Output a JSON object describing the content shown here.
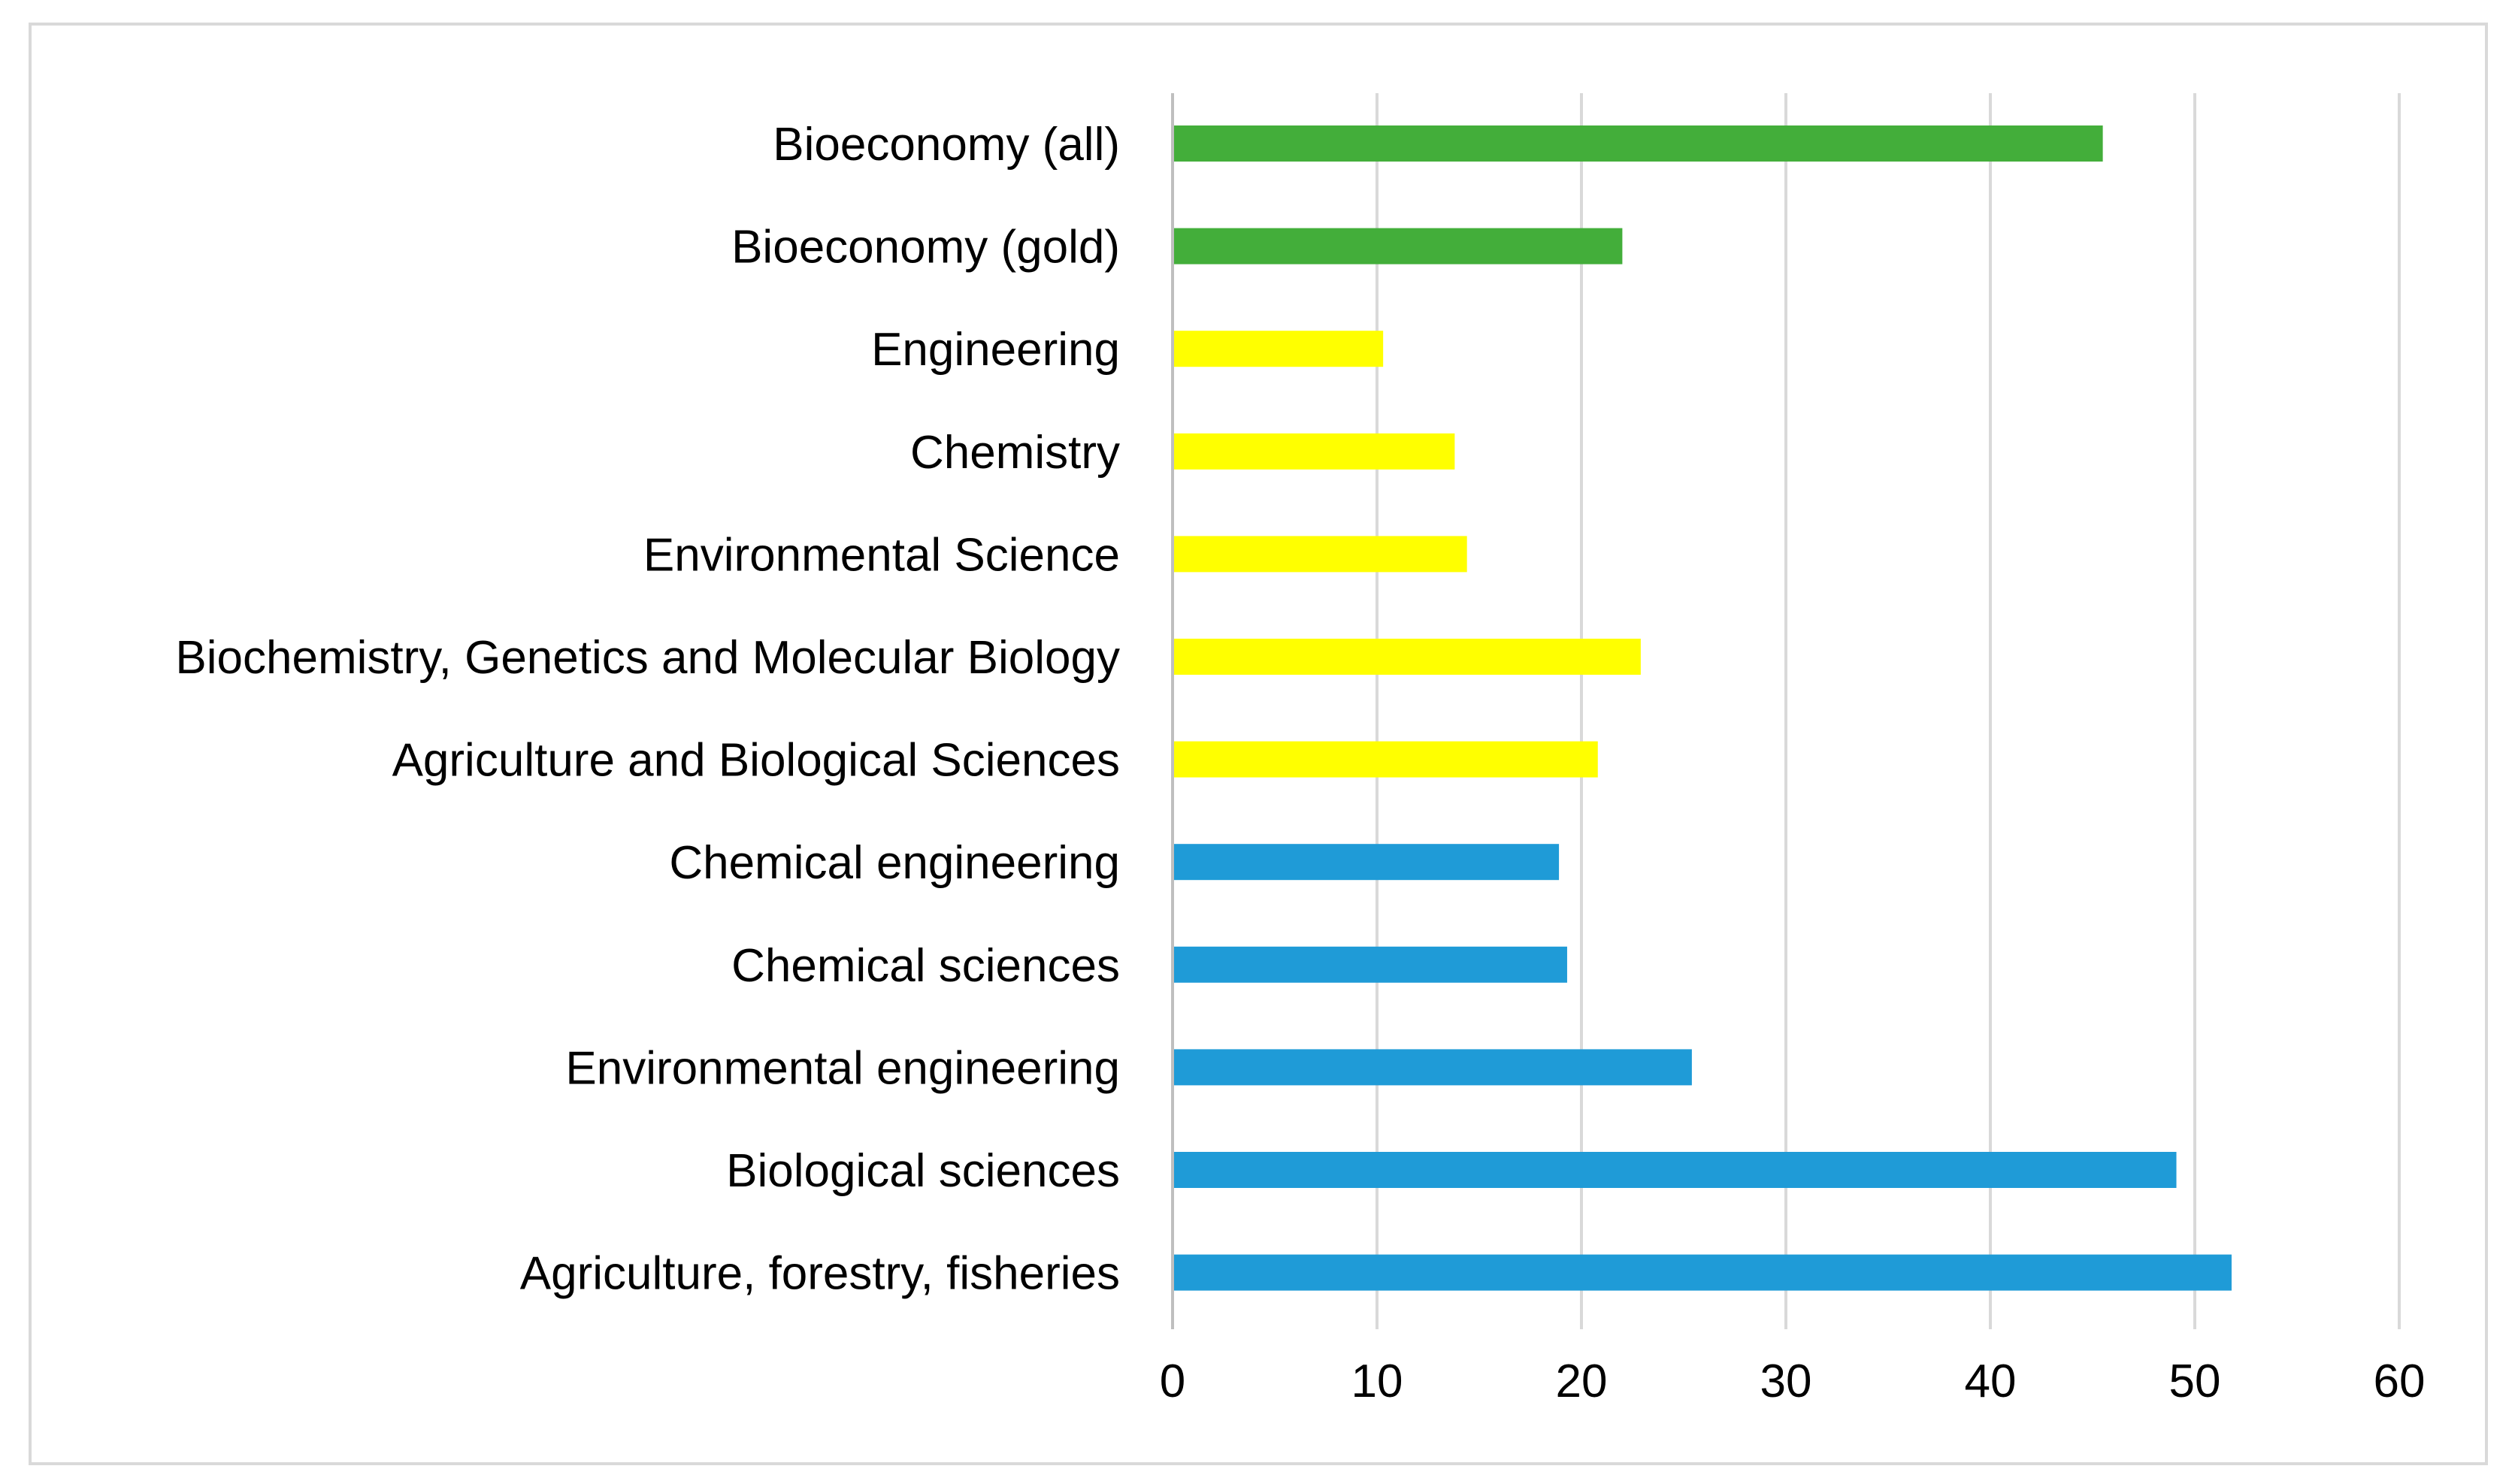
{
  "chart_data": {
    "type": "bar",
    "orientation": "horizontal",
    "title": "",
    "xlabel": "",
    "ylabel": "",
    "xlim": [
      0,
      60
    ],
    "ticks": [
      "0",
      "10",
      "20",
      "30",
      "40",
      "50",
      "60"
    ],
    "tick_values": [
      0,
      10,
      20,
      30,
      40,
      50,
      60
    ],
    "grid": true,
    "legend": "none",
    "categories": [
      "Bioeconomy (all)",
      "Bioeconomy (gold)",
      "Engineering",
      "Chemistry",
      "Environmental Science",
      "Biochemistry, Genetics and Molecular Biology",
      "Agriculture and Biological Sciences",
      "Chemical engineering",
      "Chemical sciences",
      "Environmental engineering",
      "Biological sciences",
      "Agriculture, forestry, fisheries"
    ],
    "values": [
      45.5,
      22,
      10.3,
      13.8,
      14.4,
      22.9,
      20.8,
      18.9,
      19.3,
      25.4,
      49.1,
      51.8
    ],
    "colors": [
      "#43ae3a",
      "#43ae3a",
      "#ffff00",
      "#ffff00",
      "#ffff00",
      "#ffff00",
      "#ffff00",
      "#1f9bd7",
      "#1f9bd7",
      "#1f9bd7",
      "#1f9bd7",
      "#1f9bd7"
    ]
  }
}
